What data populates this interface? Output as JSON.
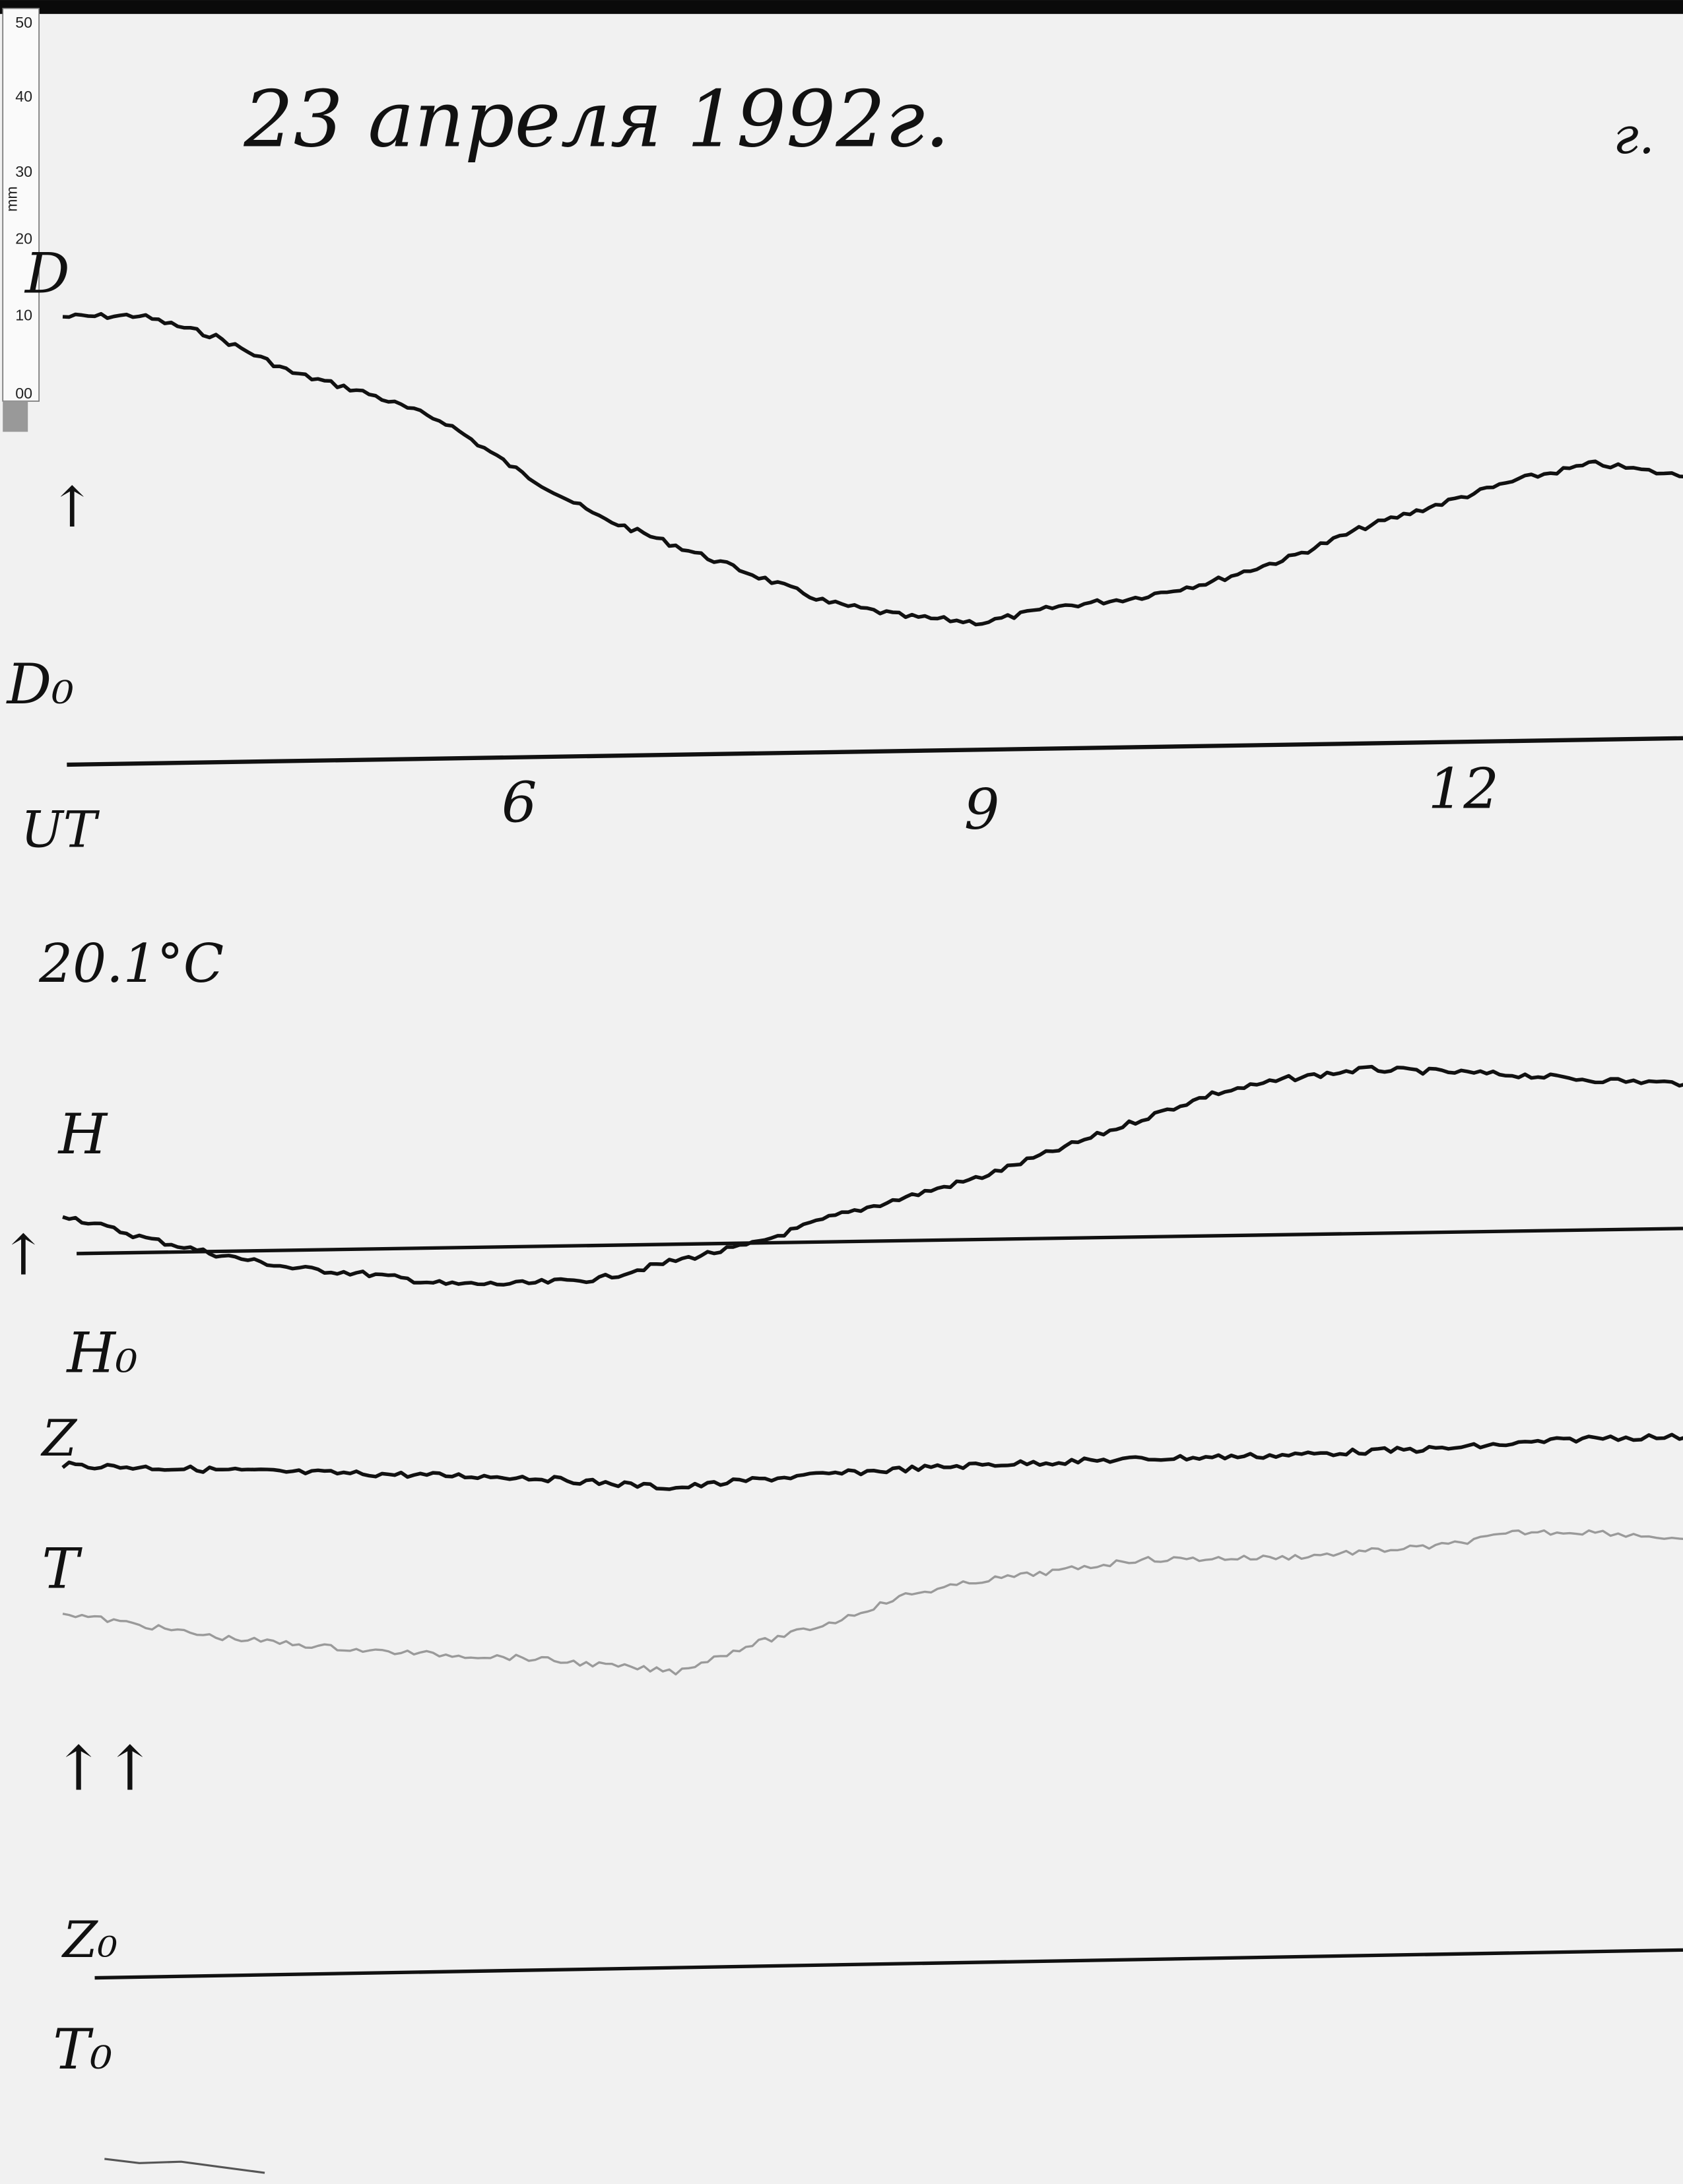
{
  "header": {
    "date_title": "23 апреля 1992г.",
    "station_mark": "г."
  },
  "ruler": {
    "unit": "mm",
    "ticks": [
      "50",
      "40",
      "30",
      "20",
      "10",
      "00"
    ]
  },
  "labels": {
    "d": "D",
    "d0": "D₀",
    "ut": "UT",
    "temperature": "20.1°C",
    "h": "H",
    "h0": "H₀",
    "z": "Z",
    "t": "T",
    "z0": "Z₀",
    "t0": "T₀",
    "arrow_d": "↑",
    "arrow_h": "↑",
    "arrows_zt": "↑↑"
  },
  "chart_data": {
    "type": "line",
    "title": "23 апреля 1992г.",
    "xlabel": "UT",
    "x_ticks": [
      "6",
      "9",
      "12"
    ],
    "x_tick_values": [
      6,
      9,
      12
    ],
    "xlim": [
      3,
      13.6
    ],
    "y_unit": "mm",
    "grid": false,
    "colors": {
      "trace": "#111111",
      "t_trace": "#9a9a9a",
      "paper": "#f1f1f1"
    },
    "x": [
      3,
      3.5,
      4,
      4.5,
      5,
      5.5,
      6,
      6.5,
      7,
      7.5,
      8,
      8.5,
      9,
      9.5,
      10,
      10.5,
      11,
      11.5,
      12,
      12.5,
      13,
      13.6
    ],
    "series": [
      {
        "name": "D",
        "baseline": "D₀",
        "values": [
          60,
          60,
          57,
          52,
          49,
          45,
          38,
          32,
          28,
          24,
          20,
          18,
          17,
          19,
          20,
          22,
          25,
          29,
          32,
          35,
          37,
          35
        ]
      },
      {
        "name": "H",
        "baseline": "H₀",
        "values": [
          5.2,
          2.1,
          -0.4,
          -2.4,
          -3.4,
          -4.9,
          -5.0,
          -4.5,
          -2.2,
          -0.2,
          3.2,
          5.8,
          8.4,
          11.9,
          15.5,
          19.0,
          20.9,
          22.0,
          21.5,
          20.9,
          20.1,
          19.4
        ]
      },
      {
        "name": "Z",
        "baseline": "Z₀",
        "values": [
          68.7,
          68.2,
          67.7,
          67.2,
          66.8,
          66.4,
          66.0,
          65.1,
          64.2,
          65.1,
          65.7,
          66.2,
          66.6,
          66.8,
          67.0,
          67.1,
          67.2,
          67.5,
          67.7,
          68.2,
          68.8,
          68.7
        ]
      },
      {
        "name": "T",
        "baseline": "T₀",
        "values": [
          48.9,
          47.1,
          45.3,
          44.2,
          43.1,
          42.4,
          41.8,
          40.7,
          39.6,
          43.1,
          45.7,
          49.3,
          51.1,
          52.2,
          53.5,
          53.5,
          53.5,
          54.1,
          54.7,
          56.3,
          56.2,
          55.0
        ]
      }
    ]
  }
}
